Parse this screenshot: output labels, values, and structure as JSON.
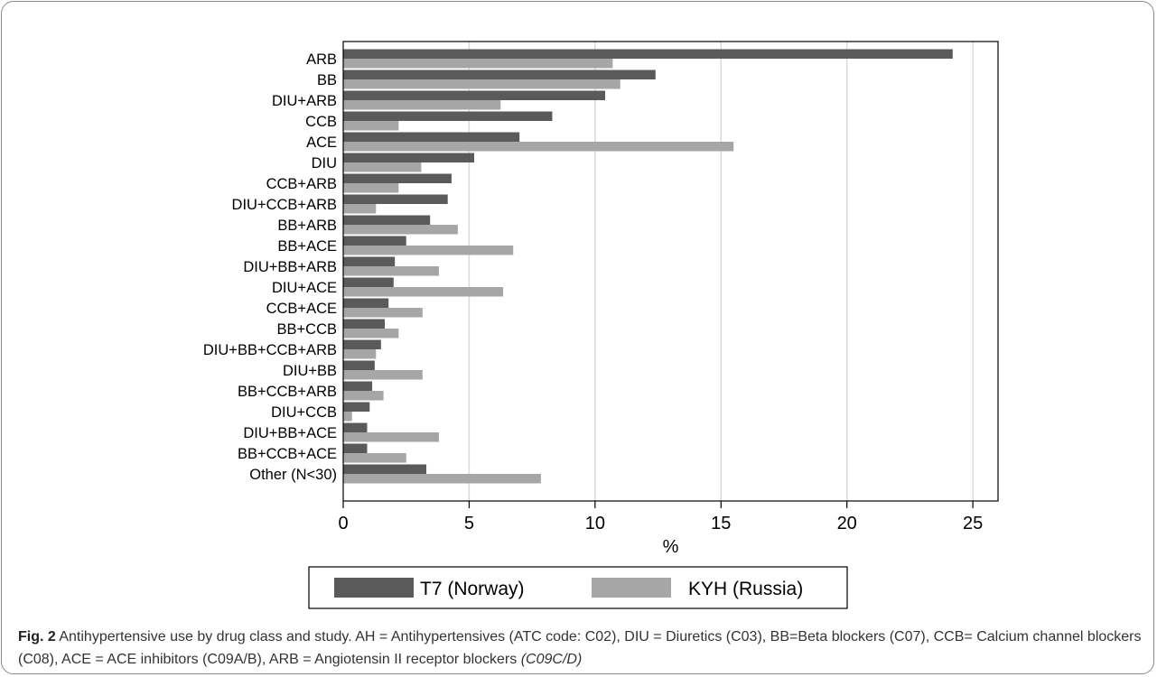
{
  "chart_data": {
    "type": "bar",
    "orientation": "horizontal",
    "categories": [
      "ARB",
      "BB",
      "DIU+ARB",
      "CCB",
      "ACE",
      "DIU",
      "CCB+ARB",
      "DIU+CCB+ARB",
      "BB+ARB",
      "BB+ACE",
      "DIU+BB+ARB",
      "DIU+ACE",
      "CCB+ACE",
      "BB+CCB",
      "DIU+BB+CCB+ARB",
      "DIU+BB",
      "BB+CCB+ARB",
      "DIU+CCB",
      "DIU+BB+ACE",
      "BB+CCB+ACE",
      "Other (N<30)"
    ],
    "series": [
      {
        "name": "T7 (Norway)",
        "color": "#5a5a5a",
        "values": [
          24.2,
          12.4,
          10.4,
          8.3,
          7.0,
          5.2,
          4.3,
          4.15,
          3.45,
          2.5,
          2.05,
          2.0,
          1.8,
          1.65,
          1.5,
          1.25,
          1.15,
          1.05,
          0.95,
          0.95,
          3.3
        ]
      },
      {
        "name": "KYH (Russia)",
        "color": "#a6a6a6",
        "values": [
          10.7,
          11.0,
          6.25,
          2.2,
          15.5,
          3.1,
          2.2,
          1.3,
          4.55,
          6.75,
          3.8,
          6.35,
          3.15,
          2.2,
          1.3,
          3.15,
          1.6,
          0.35,
          3.8,
          2.5,
          7.85
        ]
      }
    ],
    "xlabel": "%",
    "ylabel": "",
    "xlim": [
      0,
      26
    ],
    "xticks": [
      0,
      5,
      10,
      15,
      20,
      25
    ],
    "grid": true,
    "legend": "bottom",
    "grid_color": "#d9d9d9"
  },
  "caption": {
    "fig_label": "Fig. 2",
    "text": " Antihypertensive use by drug class and study. AH = Antihypertensives (ATC code: C02), DIU = Diuretics (C03), BB=Beta blockers (C07), CCB= Calcium channel blockers (C08), ACE = ACE inhibitors (C09A/B), ARB = Angiotensin II receptor blockers ",
    "italic": "(C09C/D)"
  }
}
